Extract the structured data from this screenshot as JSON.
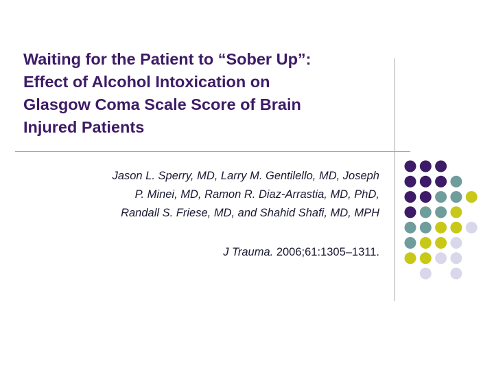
{
  "slide": {
    "title_lines": [
      "Waiting for the Patient to “Sober Up”:",
      "Effect of Alcohol Intoxication on",
      "Glasgow Coma Scale Score of Brain",
      "Injured Patients"
    ],
    "author_lines": [
      "Jason L. Sperry, MD, Larry M. Gentilello, MD, Joseph",
      "P. Minei, MD, Ramon R. Diaz-Arrastia, MD, PhD,",
      "Randall S. Friese, MD, and Shahid Shafi, MD, MPH"
    ],
    "citation": {
      "journal": "J Trauma.",
      "details": " 2006;61:1305–1311."
    }
  },
  "colors": {
    "title": "#3d1b66",
    "purple": "#3d1b66",
    "teal": "#6f9d9c",
    "yellow": "#c8c819",
    "lavender": "#d8d8ea"
  },
  "dot_grid": [
    [
      "purple",
      "purple",
      "purple",
      null
    ],
    [
      "purple",
      "purple",
      "purple",
      "teal"
    ],
    [
      "purple",
      "purple",
      "teal",
      "teal",
      "yellow"
    ],
    [
      "purple",
      "teal",
      "teal",
      "yellow"
    ],
    [
      "teal",
      "teal",
      "yellow",
      "yellow",
      "lavender"
    ],
    [
      "teal",
      "yellow",
      "yellow",
      "lavender"
    ],
    [
      "yellow",
      "yellow",
      "lavender",
      "lavender"
    ],
    [
      null,
      "lavender",
      null,
      "lavender"
    ]
  ]
}
